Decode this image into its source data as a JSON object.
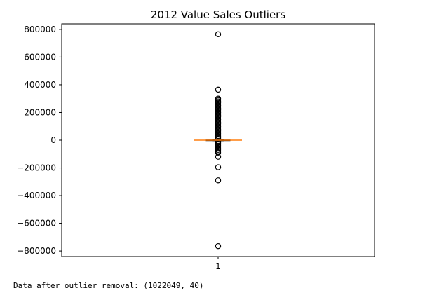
{
  "chart_data": {
    "type": "box",
    "title": "2012 Value Sales Outliers",
    "xlabel": "",
    "ylabel": "",
    "categories": [
      "1"
    ],
    "ylim": [
      -840000,
      840000
    ],
    "yticks": [
      -800000,
      -600000,
      -400000,
      -200000,
      0,
      200000,
      400000,
      600000,
      800000
    ],
    "ytick_labels": [
      "−800000",
      "−600000",
      "−400000",
      "−200000",
      "0",
      "200000",
      "400000",
      "600000",
      "800000"
    ],
    "box": {
      "q1": -1500,
      "median": 0,
      "q3": 1500,
      "whisker_low": -3500,
      "whisker_high": 3500
    },
    "outliers": [
      765000,
      365000,
      300000,
      290000,
      280000,
      270000,
      260000,
      250000,
      240000,
      230000,
      220000,
      210000,
      200000,
      190000,
      180000,
      170000,
      160000,
      150000,
      140000,
      130000,
      120000,
      110000,
      100000,
      90000,
      80000,
      70000,
      60000,
      50000,
      40000,
      30000,
      20000,
      10000,
      -10000,
      -20000,
      -30000,
      -40000,
      -50000,
      -60000,
      -70000,
      -80000,
      -90000,
      -120000,
      -195000,
      -290000,
      -765000
    ],
    "grid": false,
    "colors": {
      "median": "#ff7f0e",
      "outline": "#000000"
    }
  },
  "console": {
    "text": "Data after outlier removal: (1022049, 40)"
  }
}
